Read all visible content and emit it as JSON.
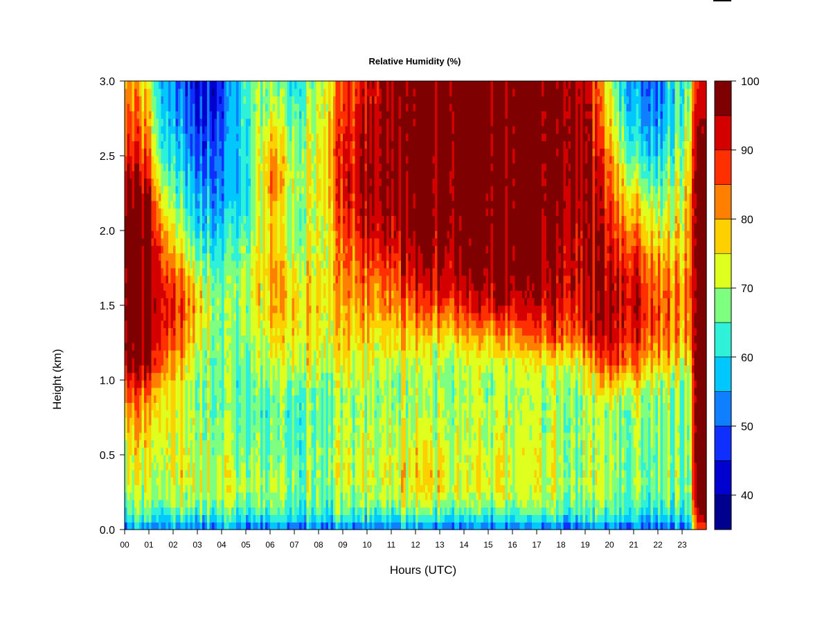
{
  "chart_data": {
    "type": "heatmap",
    "title": "Relative Humidity (%)",
    "xlabel": "Hours (UTC)",
    "ylabel": "Height (km)",
    "x_ticks": [
      "00",
      "01",
      "02",
      "03",
      "04",
      "05",
      "06",
      "07",
      "08",
      "09",
      "10",
      "11",
      "12",
      "13",
      "14",
      "15",
      "16",
      "17",
      "18",
      "19",
      "20",
      "21",
      "22",
      "23"
    ],
    "xlim": [
      0,
      24
    ],
    "y_ticks": [
      "0.0",
      "0.5",
      "1.0",
      "1.5",
      "2.0",
      "2.5",
      "3.0"
    ],
    "ylim": [
      0,
      3
    ],
    "legend": {
      "placement": "right",
      "levels": [
        35,
        40,
        45,
        50,
        55,
        60,
        65,
        70,
        75,
        80,
        85,
        90,
        95,
        100
      ],
      "tick_labels": [
        "40",
        "50",
        "60",
        "70",
        "80",
        "90",
        "100"
      ],
      "colors": [
        "#00008f",
        "#0000cf",
        "#0f2fff",
        "#0f7fff",
        "#00c8ff",
        "#2ff0d8",
        "#7fff7f",
        "#dfff1f",
        "#ffd000",
        "#ff7f00",
        "#ff2f00",
        "#d40000",
        "#7f0000"
      ]
    },
    "grid": false,
    "profile_heights_km": [
      0.0,
      0.05,
      0.1,
      0.2,
      0.3,
      0.45,
      0.6,
      0.8,
      0.9,
      1.0,
      1.1,
      1.3,
      1.5,
      1.7,
      1.9,
      2.1,
      2.3,
      2.5,
      2.75,
      3.0
    ],
    "profiles": [
      {
        "hour": 0.0,
        "rh": [
          50,
          57,
          62,
          67,
          70,
          72,
          74,
          79,
          85,
          90,
          96,
          98,
          98,
          98,
          98,
          98,
          96,
          90,
          86,
          82
        ]
      },
      {
        "hour": 1.0,
        "rh": [
          52,
          58,
          63,
          68,
          71,
          73,
          75,
          79,
          83,
          87,
          95,
          97,
          98,
          98,
          98,
          96,
          92,
          84,
          78,
          72
        ]
      },
      {
        "hour": 1.5,
        "rh": [
          52,
          58,
          63,
          68,
          71,
          73,
          74,
          76,
          78,
          82,
          88,
          92,
          94,
          92,
          88,
          82,
          74,
          66,
          62,
          60
        ]
      },
      {
        "hour": 2.0,
        "rh": [
          52,
          58,
          63,
          69,
          72,
          74,
          73,
          73,
          74,
          75,
          78,
          86,
          90,
          84,
          76,
          70,
          64,
          60,
          55,
          52
        ]
      },
      {
        "hour": 3.0,
        "rh": [
          52,
          59,
          64,
          70,
          73,
          72,
          71,
          70,
          70,
          70,
          72,
          76,
          80,
          74,
          66,
          60,
          56,
          52,
          48,
          45
        ]
      },
      {
        "hour": 4.0,
        "rh": [
          52,
          59,
          64,
          69,
          71,
          70,
          68,
          66,
          66,
          66,
          66,
          66,
          66,
          64,
          60,
          56,
          52,
          50,
          47,
          45
        ]
      },
      {
        "hour": 5.0,
        "rh": [
          50,
          57,
          63,
          67,
          70,
          68,
          66,
          65,
          65,
          65,
          66,
          68,
          70,
          70,
          67,
          63,
          60,
          62,
          64,
          65
        ]
      },
      {
        "hour": 6.0,
        "rh": [
          50,
          57,
          63,
          67,
          69,
          67,
          66,
          65,
          66,
          68,
          70,
          74,
          78,
          80,
          78,
          76,
          82,
          80,
          72,
          68
        ]
      },
      {
        "hour": 7.0,
        "rh": [
          50,
          57,
          63,
          67,
          68,
          66,
          65,
          65,
          66,
          70,
          73,
          76,
          78,
          76,
          70,
          68,
          72,
          70,
          66,
          62
        ]
      },
      {
        "hour": 8.0,
        "rh": [
          50,
          57,
          63,
          66,
          68,
          68,
          67,
          66,
          66,
          70,
          72,
          74,
          76,
          74,
          72,
          72,
          74,
          74,
          72,
          70
        ]
      },
      {
        "hour": 9.0,
        "rh": [
          50,
          57,
          63,
          67,
          70,
          70,
          69,
          68,
          68,
          70,
          72,
          75,
          78,
          80,
          82,
          86,
          88,
          88,
          86,
          84
        ]
      },
      {
        "hour": 10.0,
        "rh": [
          50,
          57,
          63,
          68,
          71,
          71,
          70,
          69,
          68,
          70,
          72,
          76,
          80,
          84,
          90,
          94,
          96,
          94,
          92,
          90
        ]
      },
      {
        "hour": 11.0,
        "rh": [
          50,
          58,
          63,
          70,
          73,
          73,
          71,
          70,
          69,
          70,
          72,
          76,
          82,
          86,
          92,
          96,
          98,
          98,
          98,
          98
        ]
      },
      {
        "hour": 12.0,
        "rh": [
          52,
          60,
          65,
          72,
          76,
          75,
          72,
          70,
          69,
          70,
          71,
          77,
          86,
          92,
          96,
          98,
          99,
          99,
          99,
          99
        ]
      },
      {
        "hour": 13.0,
        "rh": [
          50,
          58,
          64,
          72,
          76,
          75,
          72,
          70,
          69,
          69,
          70,
          76,
          88,
          94,
          97,
          99,
          99,
          99,
          99,
          99
        ]
      },
      {
        "hour": 14.0,
        "rh": [
          50,
          58,
          63,
          70,
          72,
          72,
          71,
          70,
          69,
          69,
          70,
          78,
          90,
          96,
          98,
          99,
          99,
          99,
          99,
          99
        ]
      },
      {
        "hour": 15.0,
        "rh": [
          50,
          58,
          63,
          70,
          73,
          73,
          71,
          70,
          69,
          69,
          70,
          80,
          92,
          97,
          99,
          99,
          99,
          99,
          99,
          99
        ]
      },
      {
        "hour": 16.0,
        "rh": [
          50,
          58,
          63,
          70,
          72,
          72,
          71,
          70,
          69,
          70,
          72,
          82,
          93,
          97,
          99,
          99,
          99,
          99,
          99,
          99
        ]
      },
      {
        "hour": 17.0,
        "rh": [
          50,
          57,
          63,
          69,
          71,
          71,
          70,
          69,
          69,
          70,
          72,
          84,
          92,
          95,
          97,
          99,
          99,
          99,
          99,
          99
        ]
      },
      {
        "hour": 18.0,
        "rh": [
          50,
          57,
          63,
          68,
          70,
          70,
          70,
          69,
          69,
          70,
          73,
          86,
          92,
          94,
          96,
          98,
          99,
          99,
          99,
          99
        ]
      },
      {
        "hour": 19.0,
        "rh": [
          50,
          57,
          63,
          67,
          69,
          69,
          69,
          68,
          70,
          72,
          76,
          88,
          92,
          94,
          94,
          95,
          96,
          97,
          96,
          94
        ]
      },
      {
        "hour": 20.0,
        "rh": [
          50,
          57,
          62,
          66,
          68,
          68,
          68,
          68,
          72,
          78,
          86,
          92,
          94,
          92,
          90,
          88,
          84,
          80,
          74,
          70
        ]
      },
      {
        "hour": 21.0,
        "rh": [
          50,
          57,
          62,
          66,
          68,
          68,
          68,
          69,
          72,
          76,
          84,
          90,
          94,
          92,
          86,
          80,
          72,
          64,
          58,
          54
        ]
      },
      {
        "hour": 22.0,
        "rh": [
          50,
          57,
          62,
          66,
          68,
          68,
          68,
          68,
          70,
          72,
          78,
          86,
          88,
          84,
          78,
          72,
          66,
          60,
          54,
          52
        ]
      },
      {
        "hour": 23.0,
        "rh": [
          50,
          57,
          62,
          66,
          68,
          68,
          67,
          67,
          68,
          70,
          74,
          80,
          82,
          80,
          76,
          74,
          72,
          70,
          66,
          64
        ]
      },
      {
        "hour": 23.3,
        "rh": [
          50,
          56,
          60,
          64,
          66,
          67,
          67,
          67,
          68,
          70,
          74,
          82,
          86,
          86,
          84,
          82,
          80,
          76,
          70,
          66
        ]
      },
      {
        "hour": 23.5,
        "rh": [
          80,
          86,
          92,
          94,
          96,
          98,
          98,
          98,
          98,
          98,
          98,
          98,
          98,
          98,
          98,
          98,
          98,
          98,
          94,
          90
        ]
      },
      {
        "hour": 24.0,
        "rh": [
          82,
          88,
          92,
          94,
          96,
          98,
          98,
          98,
          98,
          98,
          98,
          98,
          98,
          98,
          98,
          98,
          98,
          96,
          90,
          84
        ]
      }
    ]
  }
}
